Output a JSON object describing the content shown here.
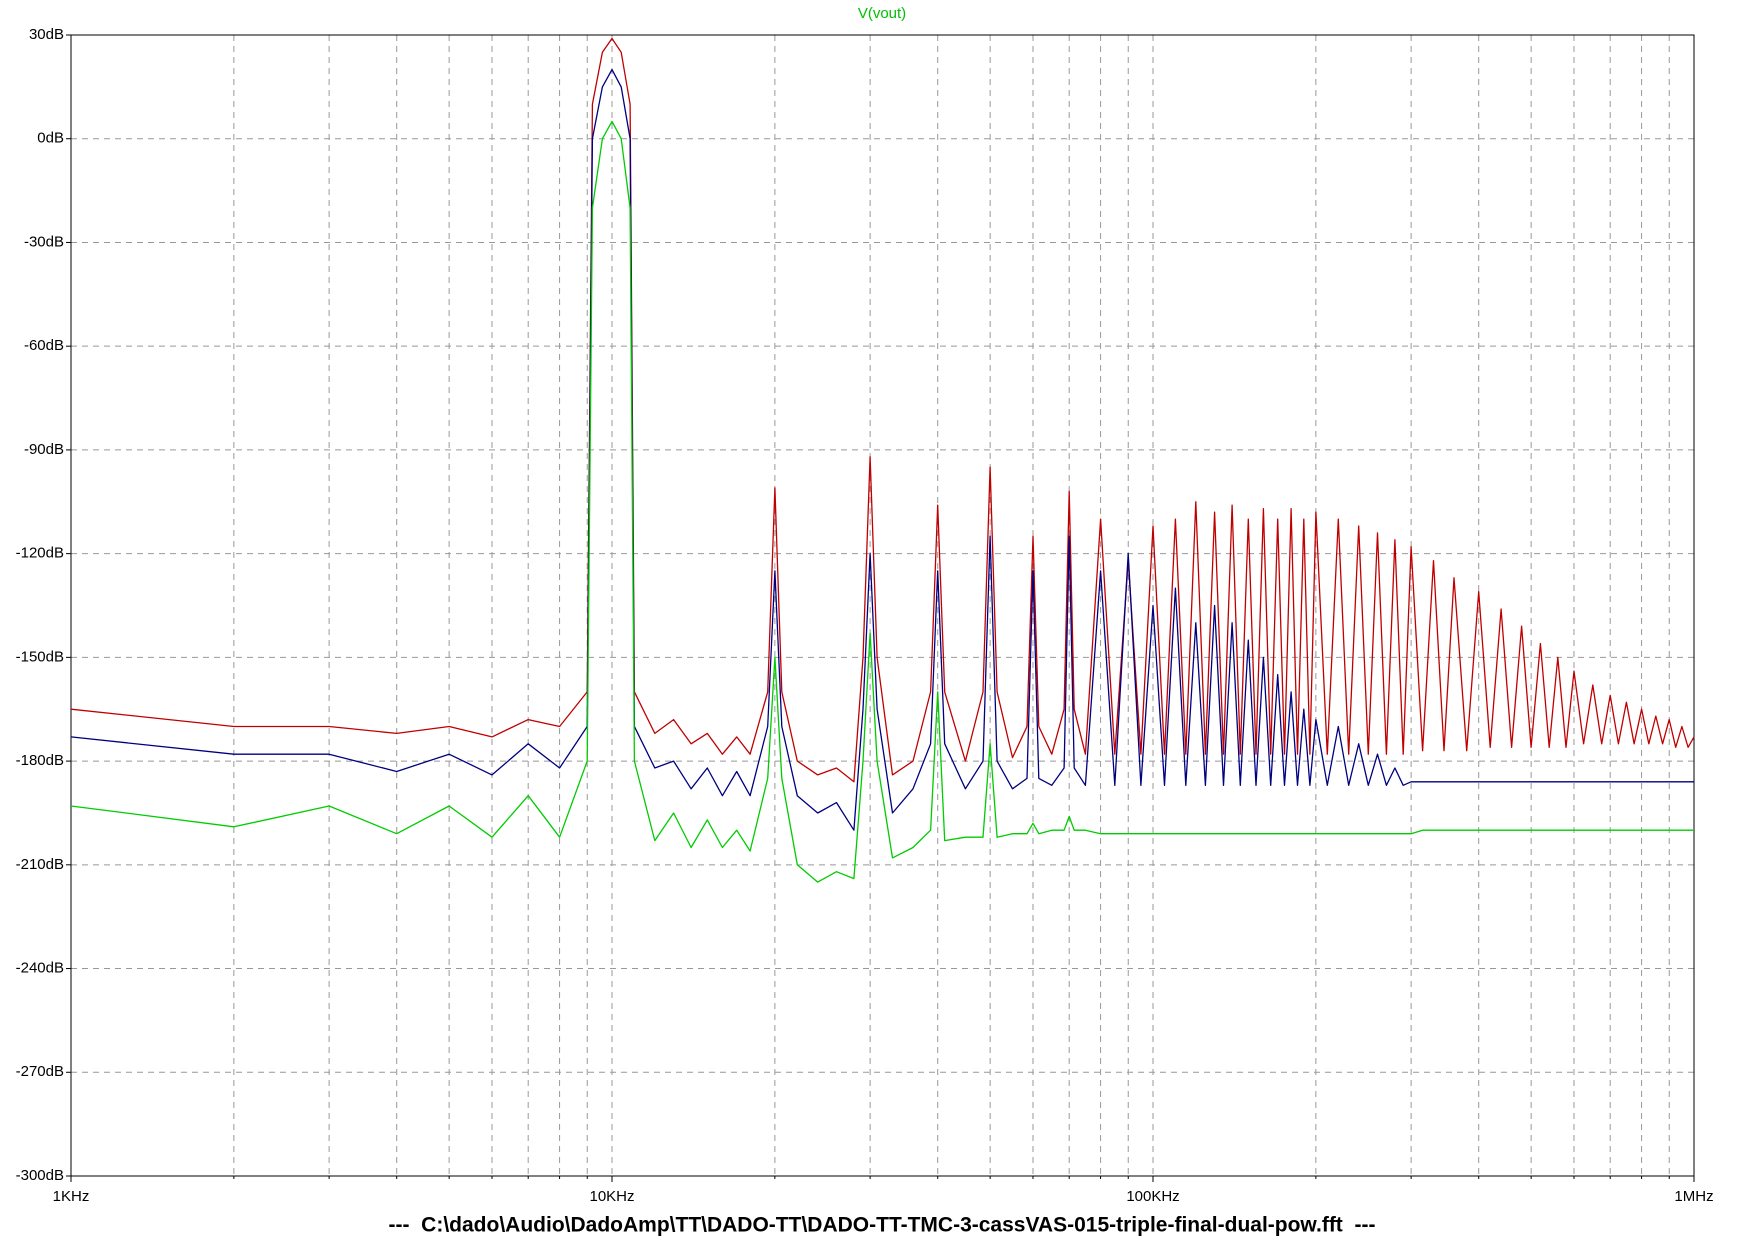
{
  "chart_data": {
    "type": "line",
    "title": "V(vout)",
    "title_color": "#00c000",
    "xlabel": "---  C:\\dado\\Audio\\DadoAmp\\TT\\DADO-TT\\DADO-TT-TMC-3-cassVAS-015-triple-final-dual-pow.fft  ---",
    "xscale": "log",
    "grid": true,
    "xlim": [
      1000,
      1000000
    ],
    "xticks": [
      {
        "value": 1000,
        "label": "1KHz"
      },
      {
        "value": 10000,
        "label": "10KHz"
      },
      {
        "value": 100000,
        "label": "100KHz"
      },
      {
        "value": 1000000,
        "label": "1MHz"
      }
    ],
    "xminorticks": [
      2000,
      3000,
      4000,
      5000,
      6000,
      7000,
      8000,
      9000,
      20000,
      30000,
      40000,
      50000,
      60000,
      70000,
      80000,
      90000,
      200000,
      300000,
      400000,
      500000,
      600000,
      700000,
      800000,
      900000
    ],
    "ylim": [
      -300,
      30
    ],
    "yticks": [
      {
        "value": 30,
        "label": "30dB"
      },
      {
        "value": 0,
        "label": "0dB"
      },
      {
        "value": -30,
        "label": "-30dB"
      },
      {
        "value": -60,
        "label": "-60dB"
      },
      {
        "value": -90,
        "label": "-90dB"
      },
      {
        "value": -120,
        "label": "-120dB"
      },
      {
        "value": -150,
        "label": "-150dB"
      },
      {
        "value": -180,
        "label": "-180dB"
      },
      {
        "value": -210,
        "label": "-210dB"
      },
      {
        "value": -240,
        "label": "-240dB"
      },
      {
        "value": -270,
        "label": "-270dB"
      },
      {
        "value": -300,
        "label": "-300dB"
      }
    ],
    "x": [
      1000,
      2000,
      3000,
      4000,
      5000,
      6000,
      7000,
      8000,
      9000,
      9200,
      9600,
      10000,
      10400,
      10800,
      11000,
      12000,
      13000,
      14000,
      15000,
      16000,
      17000,
      18000,
      19400,
      20000,
      20600,
      22000,
      24000,
      26000,
      28000,
      29100,
      30000,
      30900,
      33000,
      36000,
      38800,
      40000,
      41200,
      45000,
      48500,
      50000,
      51500,
      55000,
      58500,
      60000,
      61500,
      65000,
      68500,
      70000,
      71500,
      75000,
      80000,
      85000,
      90000,
      95000,
      100000,
      105000,
      110000,
      115000,
      120000,
      125000,
      130000,
      135000,
      140000,
      145000,
      150000,
      155000,
      160000,
      165000,
      170000,
      175000,
      180000,
      185000,
      190000,
      195000,
      200000,
      210000,
      220000,
      230000,
      240000,
      250000,
      260000,
      270000,
      280000,
      290000,
      300000,
      315000,
      330000,
      345000,
      360000,
      380000,
      400000,
      420000,
      440000,
      460000,
      480000,
      500000,
      520000,
      540000,
      560000,
      580000,
      600000,
      625000,
      650000,
      675000,
      700000,
      725000,
      750000,
      775000,
      800000,
      825000,
      850000,
      875000,
      900000,
      925000,
      950000,
      975000,
      1000000
    ],
    "series": [
      {
        "color": "#c00000",
        "values": [
          -165,
          -170,
          -170,
          -172,
          -170,
          -173,
          -168,
          -170,
          -160,
          10,
          25,
          29,
          25,
          10,
          -160,
          -172,
          -168,
          -175,
          -172,
          -178,
          -173,
          -178,
          -160,
          -101,
          -160,
          -180,
          -184,
          -182,
          -186,
          -150,
          -92,
          -150,
          -184,
          -180,
          -160,
          -106,
          -160,
          -180,
          -160,
          -95,
          -160,
          -179,
          -170,
          -115,
          -170,
          -178,
          -165,
          -102,
          -165,
          -178,
          -110,
          -178,
          -122,
          -178,
          -112,
          -178,
          -110,
          -178,
          -105,
          -178,
          -108,
          -178,
          -106,
          -178,
          -110,
          -178,
          -107,
          -178,
          -110,
          -178,
          -107,
          -178,
          -110,
          -178,
          -108,
          -178,
          -110,
          -178,
          -112,
          -178,
          -114,
          -178,
          -116,
          -178,
          -118,
          -177,
          -122,
          -177,
          -127,
          -177,
          -131,
          -176,
          -136,
          -176,
          -141,
          -176,
          -146,
          -176,
          -150,
          -176,
          -154,
          -175,
          -158,
          -175,
          -161,
          -175,
          -163,
          -175,
          -165,
          -175,
          -167,
          -175,
          -168,
          -176,
          -170,
          -176,
          -173
        ]
      },
      {
        "color": "#000080",
        "values": [
          -173,
          -178,
          -178,
          -183,
          -178,
          -184,
          -175,
          -182,
          -170,
          0,
          15,
          20,
          15,
          0,
          -170,
          -182,
          -180,
          -188,
          -182,
          -190,
          -183,
          -190,
          -170,
          -125,
          -170,
          -190,
          -195,
          -192,
          -200,
          -165,
          -120,
          -165,
          -195,
          -188,
          -175,
          -125,
          -175,
          -188,
          -180,
          -115,
          -180,
          -188,
          -185,
          -125,
          -185,
          -187,
          -182,
          -115,
          -182,
          -187,
          -125,
          -187,
          -120,
          -187,
          -135,
          -187,
          -130,
          -187,
          -140,
          -187,
          -135,
          -187,
          -140,
          -187,
          -145,
          -187,
          -150,
          -187,
          -155,
          -187,
          -160,
          -187,
          -165,
          -187,
          -168,
          -187,
          -170,
          -187,
          -175,
          -187,
          -178,
          -187,
          -182,
          -187,
          -186,
          -186,
          -186,
          -186,
          -186,
          -186,
          -186,
          -186,
          -186,
          -186,
          -186,
          -186,
          -186,
          -186,
          -186,
          -186,
          -186,
          -186,
          -186,
          -186,
          -186,
          -186,
          -186,
          -186,
          -186,
          -186,
          -186,
          -186,
          -186,
          -186,
          -186,
          -186,
          -186
        ]
      },
      {
        "color": "#00cc00",
        "values": [
          -193,
          -199,
          -193,
          -201,
          -193,
          -202,
          -190,
          -202,
          -180,
          -20,
          0,
          5,
          0,
          -20,
          -180,
          -203,
          -195,
          -205,
          -197,
          -205,
          -200,
          -206,
          -185,
          -150,
          -185,
          -210,
          -215,
          -212,
          -214,
          -180,
          -143,
          -180,
          -208,
          -205,
          -200,
          -160,
          -203,
          -202,
          -202,
          -175,
          -202,
          -201,
          -201,
          -198,
          -201,
          -200,
          -200,
          -196,
          -200,
          -200,
          -201,
          -201,
          -201,
          -201,
          -201,
          -201,
          -201,
          -201,
          -201,
          -201,
          -201,
          -201,
          -201,
          -201,
          -201,
          -201,
          -201,
          -201,
          -201,
          -201,
          -201,
          -201,
          -201,
          -201,
          -201,
          -201,
          -201,
          -201,
          -201,
          -201,
          -201,
          -201,
          -201,
          -201,
          -201,
          -200,
          -200,
          -200,
          -200,
          -200,
          -200,
          -200,
          -200,
          -200,
          -200,
          -200,
          -200,
          -200,
          -200,
          -200,
          -200,
          -200,
          -200,
          -200,
          -200,
          -200,
          -200,
          -200,
          -200,
          -200,
          -200,
          -200,
          -200,
          -200,
          -200,
          -200,
          -200
        ]
      }
    ]
  }
}
